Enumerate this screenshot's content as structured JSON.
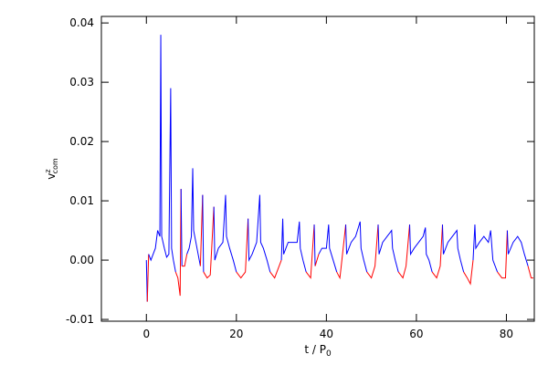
{
  "chart_data": {
    "type": "line",
    "x_label": {
      "text": "t / P",
      "sub": "0"
    },
    "y_label": {
      "text": "v",
      "sup": "z",
      "sub": "com"
    },
    "xlim": [
      -10,
      86.2
    ],
    "ylim": [
      -0.0103,
      0.0411
    ],
    "xticks": [
      0,
      20,
      40,
      60,
      80
    ],
    "yticks": [
      -0.01,
      {
        "value": 0,
        "label": "0.00"
      },
      0.01,
      0.02,
      0.03,
      0.04
    ],
    "color_positive": "#0000ff",
    "color_negative": "#ff0000",
    "series": [
      {
        "x": [
          0,
          0.2,
          0.5,
          1,
          1.5,
          2,
          2.5,
          3,
          3.2,
          3.4,
          4,
          4.5,
          5,
          5.4,
          5.6,
          6,
          6.5,
          7,
          7.5,
          7.7,
          7.9,
          8.5,
          9,
          9.5,
          10,
          10.3,
          10.5,
          11,
          11.5,
          12,
          12.5,
          12.7,
          13.5,
          14.2,
          15,
          15.2,
          16,
          17,
          17.6,
          17.8,
          18.5,
          19.3,
          20,
          21,
          22,
          22.6,
          22.8,
          23.5,
          24,
          24.5,
          25.2,
          25.4,
          26,
          26.8,
          27.5,
          28.5,
          29.5,
          30,
          30.3,
          30.5,
          31.5,
          32.5,
          33.5,
          34,
          34.2,
          34.8,
          35.5,
          36.5,
          37.3,
          37.5,
          38.3,
          39,
          40,
          40.5,
          40.7,
          41.5,
          42.3,
          43,
          43.3,
          44.3,
          44.5,
          45.5,
          46.5,
          47.5,
          47.7,
          48.3,
          49,
          50,
          50.8,
          51.5,
          51.7,
          52.5,
          53.5,
          54.5,
          54.7,
          55.3,
          56,
          57,
          57.7,
          58.5,
          58.7,
          59.5,
          60.5,
          61.5,
          62,
          62.2,
          62.8,
          63.5,
          64.5,
          65.3,
          65.8,
          66,
          67,
          68,
          69,
          69.2,
          69.8,
          70.5,
          71.3,
          72,
          72.6,
          73,
          73.2,
          74,
          75,
          76,
          76.5,
          77,
          78,
          79,
          79.8,
          80.2,
          80.4,
          81.5,
          82.5,
          83.3,
          84,
          84.8,
          85.5,
          86
        ],
        "values": [
          0,
          -0.007,
          0.001,
          0,
          0.001,
          0.002,
          0.005,
          0.004,
          0.038,
          0.004,
          0.002,
          0.0005,
          0.001,
          0.029,
          0.002,
          0,
          -0.002,
          -0.003,
          -0.006,
          0.012,
          -0.001,
          -0.001,
          0.001,
          0.002,
          0.004,
          0.0155,
          0.005,
          0.003,
          0.001,
          -0.001,
          0.011,
          -0.002,
          -0.003,
          -0.0025,
          0.009,
          0,
          0.002,
          0.003,
          0.011,
          0.004,
          0.002,
          0,
          -0.002,
          -0.003,
          -0.002,
          0.007,
          0,
          0.001,
          0.002,
          0.003,
          0.011,
          0.003,
          0.002,
          0,
          -0.002,
          -0.003,
          -0.001,
          0,
          0.007,
          0.001,
          0.003,
          0.003,
          0.003,
          0.0065,
          0.002,
          0,
          -0.002,
          -0.003,
          0.006,
          -0.001,
          0.001,
          0.002,
          0.002,
          0.006,
          0.002,
          0,
          -0.002,
          -0.003,
          -0.001,
          0.006,
          0.001,
          0.003,
          0.004,
          0.0065,
          0.002,
          0,
          -0.002,
          -0.003,
          -0.001,
          0.006,
          0.001,
          0.003,
          0.004,
          0.005,
          0.002,
          0,
          -0.002,
          -0.003,
          -0.001,
          0.006,
          0.001,
          0.002,
          0.003,
          0.004,
          0.0055,
          0.001,
          0,
          -0.002,
          -0.003,
          -0.001,
          0.006,
          0.001,
          0.003,
          0.004,
          0.005,
          0.002,
          0,
          -0.002,
          -0.003,
          -0.004,
          0,
          0.006,
          0.002,
          0.003,
          0.004,
          0.003,
          0.005,
          0,
          -0.002,
          -0.003,
          -0.003,
          0.005,
          0.001,
          0.003,
          0.004,
          0.003,
          0.001,
          -0.001,
          -0.003,
          -0.003
        ]
      }
    ]
  }
}
